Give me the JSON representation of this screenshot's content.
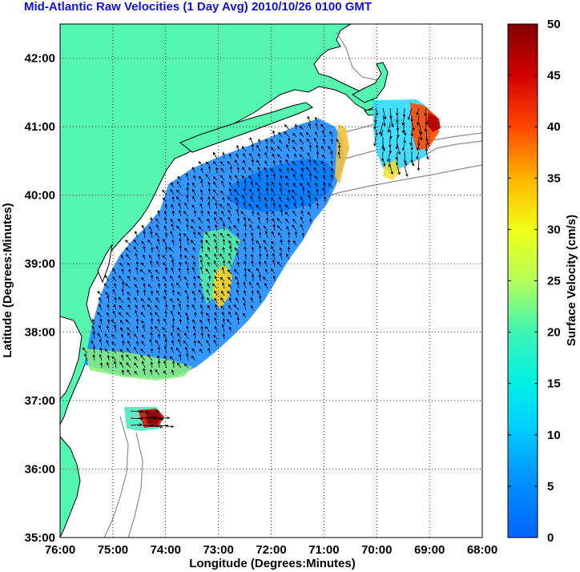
{
  "title": "Mid-Atlantic Raw Velocities (1 Day Avg) 2010/10/26 0100 GMT",
  "map": {
    "xlabel": "Longitude (Degrees:Minutes)",
    "ylabel": "Latitude (Degrees:Minutes)",
    "x_ticks": [
      "76:00",
      "75:00",
      "74:00",
      "73:00",
      "72:00",
      "71:00",
      "70:00",
      "69:00",
      "68:00"
    ],
    "y_ticks": [
      "42:00",
      "41:00",
      "40:00",
      "39:00",
      "38:00",
      "37:00",
      "36:00",
      "35:00"
    ],
    "lon_range": [
      -76,
      -68
    ],
    "lat_range": [
      35,
      42.5
    ],
    "grid": true,
    "land_color": "#55f7b0",
    "ocean_color": "#ffffff",
    "contour_color": "#8c8c8c"
  },
  "colorbar": {
    "label": "Surface Velocity (cm/s)",
    "ticks": [
      "50",
      "45",
      "40",
      "35",
      "30",
      "25",
      "20",
      "15",
      "10",
      "5",
      "0"
    ],
    "range": [
      0,
      50
    ],
    "colormap": "jet"
  },
  "colors": {
    "title": "#1010e0",
    "arrows": "#000000"
  }
}
